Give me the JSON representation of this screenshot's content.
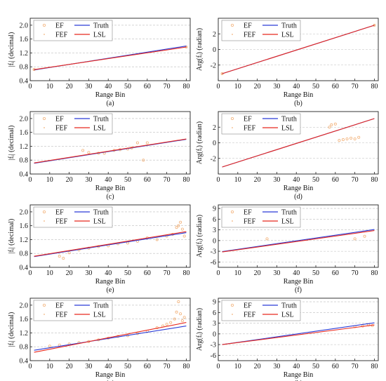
{
  "chart_data": [
    {
      "type": "scatter",
      "panel": "(a)",
      "xlabel": "Range Bin",
      "ylabel": "|fᵢ| (decimal)",
      "xlim": [
        0,
        82
      ],
      "ylim": [
        0.4,
        2.2
      ],
      "xticks": [
        0,
        10,
        20,
        30,
        40,
        50,
        60,
        70,
        80
      ],
      "yticks": [
        0.4,
        0.8,
        1.2,
        1.6,
        2.0
      ],
      "ytick_labels": [
        "0.4",
        "0.8",
        "1.2",
        "1.6",
        "2.0"
      ],
      "grid": "y-dashed",
      "legend": "top-left",
      "series": [
        {
          "name": "EF",
          "marker": "circle",
          "color": "#f2b27a",
          "x": [
            2,
            80
          ],
          "y": [
            0.72,
            1.37
          ]
        },
        {
          "name": "FEF",
          "marker": "dot",
          "color": "#f2b27a",
          "x": [
            2,
            80
          ],
          "y": [
            0.72,
            1.37
          ]
        },
        {
          "name": "Truth",
          "kind": "line",
          "color": "#2a3bd6",
          "x": [
            2,
            80
          ],
          "y": [
            0.71,
            1.4
          ]
        },
        {
          "name": "LSL",
          "kind": "line",
          "color": "#e8281e",
          "x": [
            2,
            80
          ],
          "y": [
            0.72,
            1.37
          ]
        }
      ]
    },
    {
      "type": "scatter",
      "panel": "(b)",
      "xlabel": "Range Bin",
      "ylabel": "Arg(fᵢ) (radian)",
      "xlim": [
        0,
        82
      ],
      "ylim": [
        -4,
        4
      ],
      "xticks": [
        0,
        10,
        20,
        30,
        40,
        50,
        60,
        70,
        80
      ],
      "yticks": [
        -2,
        0,
        2
      ],
      "ytick_labels": [
        "-2",
        "0",
        "2"
      ],
      "grid": "y-dashed",
      "legend": "top-left",
      "series": [
        {
          "name": "EF",
          "marker": "circle",
          "color": "#f2b27a",
          "x": [
            2,
            80
          ],
          "y": [
            -3.1,
            3.1
          ]
        },
        {
          "name": "FEF",
          "marker": "dot",
          "color": "#f2b27a",
          "x": [
            2,
            80
          ],
          "y": [
            -3.1,
            3.1
          ]
        },
        {
          "name": "Truth",
          "kind": "line",
          "color": "#2a3bd6",
          "x": [
            2,
            80
          ],
          "y": [
            -3.1,
            3.1
          ]
        },
        {
          "name": "LSL",
          "kind": "line",
          "color": "#e8281e",
          "x": [
            2,
            80
          ],
          "y": [
            -3.1,
            3.1
          ]
        }
      ]
    },
    {
      "type": "scatter",
      "panel": "(c)",
      "xlabel": "Range Bin",
      "ylabel": "|fᵢ| (decimal)",
      "xlim": [
        0,
        82
      ],
      "ylim": [
        0.4,
        2.2
      ],
      "xticks": [
        0,
        10,
        20,
        30,
        40,
        50,
        60,
        70,
        80
      ],
      "yticks": [
        0.4,
        0.8,
        1.2,
        1.6,
        2.0
      ],
      "ytick_labels": [
        "0.4",
        "0.8",
        "1.2",
        "1.6",
        "2.0"
      ],
      "grid": "y-dashed",
      "legend": "top-left",
      "series": [
        {
          "name": "EF",
          "marker": "circle",
          "color": "#f2b27a",
          "x": [
            27,
            30,
            35,
            38,
            43,
            46,
            50,
            52,
            55,
            58,
            60
          ],
          "y": [
            1.08,
            1.02,
            1.0,
            1.0,
            1.08,
            1.1,
            1.12,
            1.15,
            1.3,
            0.8,
            1.3
          ]
        },
        {
          "name": "FEF",
          "marker": "dot",
          "color": "#f2b27a",
          "x": [],
          "y": []
        },
        {
          "name": "Truth",
          "kind": "line",
          "color": "#2a3bd6",
          "x": [
            2,
            80
          ],
          "y": [
            0.71,
            1.4
          ]
        },
        {
          "name": "LSL",
          "kind": "line",
          "color": "#e8281e",
          "x": [
            2,
            80
          ],
          "y": [
            0.72,
            1.41
          ]
        }
      ]
    },
    {
      "type": "scatter",
      "panel": "(d)",
      "xlabel": "Range Bin",
      "ylabel": "Arg(fᵢ) (radian)",
      "xlim": [
        0,
        82
      ],
      "ylim": [
        -4,
        4
      ],
      "xticks": [
        0,
        10,
        20,
        30,
        40,
        50,
        60,
        70,
        80
      ],
      "yticks": [
        -2,
        0,
        2
      ],
      "ytick_labels": [
        "-2",
        "0",
        "2"
      ],
      "grid": "y-dashed",
      "legend": "top-left",
      "series": [
        {
          "name": "EF",
          "marker": "circle",
          "color": "#f2b27a",
          "x": [
            57,
            58,
            60,
            62,
            64,
            66,
            68,
            70,
            72
          ],
          "y": [
            2.0,
            2.3,
            2.4,
            0.3,
            0.4,
            0.5,
            0.6,
            0.5,
            0.7
          ]
        },
        {
          "name": "FEF",
          "marker": "dot",
          "color": "#f2b27a",
          "x": [],
          "y": []
        },
        {
          "name": "Truth",
          "kind": "line",
          "color": "#2a3bd6",
          "x": [
            2,
            80
          ],
          "y": [
            -3.1,
            3.1
          ]
        },
        {
          "name": "LSL",
          "kind": "line",
          "color": "#e8281e",
          "x": [
            2,
            80
          ],
          "y": [
            -3.1,
            3.1
          ]
        }
      ]
    },
    {
      "type": "scatter",
      "panel": "(e)",
      "xlabel": "Range Bin",
      "ylabel": "|fᵢ| (decimal)",
      "xlim": [
        0,
        82
      ],
      "ylim": [
        0.4,
        2.2
      ],
      "xticks": [
        0,
        10,
        20,
        30,
        40,
        50,
        60,
        70,
        80
      ],
      "yticks": [
        0.4,
        0.8,
        1.2,
        1.6,
        2.0
      ],
      "ytick_labels": [
        "0.4",
        "0.8",
        "1.2",
        "1.6",
        "2.0"
      ],
      "grid": "y-dashed",
      "legend": "top-left",
      "series": [
        {
          "name": "EF",
          "marker": "circle",
          "color": "#f2b27a",
          "x": [
            15,
            17,
            20,
            25,
            30,
            35,
            40,
            45,
            50,
            55,
            60,
            65,
            70,
            73,
            75,
            76,
            77,
            78,
            79
          ],
          "y": [
            0.72,
            0.66,
            0.82,
            0.9,
            0.95,
            1.0,
            1.02,
            1.08,
            1.1,
            1.15,
            1.25,
            1.2,
            1.3,
            1.35,
            1.55,
            1.6,
            1.7,
            1.5,
            1.3
          ]
        },
        {
          "name": "FEF",
          "marker": "dot",
          "color": "#f2b27a",
          "x": [],
          "y": []
        },
        {
          "name": "Truth",
          "kind": "line",
          "color": "#2a3bd6",
          "x": [
            2,
            80
          ],
          "y": [
            0.71,
            1.4
          ]
        },
        {
          "name": "LSL",
          "kind": "line",
          "color": "#e8281e",
          "x": [
            2,
            80
          ],
          "y": [
            0.72,
            1.43
          ]
        }
      ]
    },
    {
      "type": "scatter",
      "panel": "(f)",
      "xlabel": "Range Bin",
      "ylabel": "Arg(fᵢ) (radian)",
      "xlim": [
        0,
        82
      ],
      "ylim": [
        -7.5,
        10
      ],
      "xticks": [
        0,
        10,
        20,
        30,
        40,
        50,
        60,
        70,
        80
      ],
      "yticks": [
        -6,
        -3,
        0,
        3,
        6,
        9
      ],
      "ytick_labels": [
        "-6",
        "-3",
        "0",
        "3",
        "6",
        "9"
      ],
      "grid": "y-dashed",
      "legend": "top-left",
      "series": [
        {
          "name": "EF",
          "marker": "circle",
          "color": "#f2b27a",
          "x": [
            25,
            70,
            75
          ],
          "y": [
            0.5,
            0.5,
            1.2
          ]
        },
        {
          "name": "FEF",
          "marker": "dot",
          "color": "#f2b27a",
          "x": [],
          "y": []
        },
        {
          "name": "Truth",
          "kind": "line",
          "color": "#2a3bd6",
          "x": [
            2,
            80
          ],
          "y": [
            -3.1,
            3.1
          ]
        },
        {
          "name": "LSL",
          "kind": "line",
          "color": "#e8281e",
          "x": [
            2,
            80
          ],
          "y": [
            -3.2,
            2.8
          ]
        }
      ]
    },
    {
      "type": "scatter",
      "panel": "(g)",
      "xlabel": "Range Bin",
      "ylabel": "|fᵢ| (decimal)",
      "xlim": [
        0,
        82
      ],
      "ylim": [
        0.4,
        2.2
      ],
      "xticks": [
        0,
        10,
        20,
        30,
        40,
        50,
        60,
        70,
        80
      ],
      "yticks": [
        0.4,
        0.8,
        1.2,
        1.6,
        2.0
      ],
      "ytick_labels": [
        "0.4",
        "0.8",
        "1.2",
        "1.6",
        "2.0"
      ],
      "grid": "y-dashed",
      "legend": "top-left",
      "series": [
        {
          "name": "EF",
          "marker": "circle",
          "color": "#f2b27a",
          "x": [
            10,
            15,
            20,
            25,
            30,
            35,
            40,
            45,
            50,
            55,
            60,
            65,
            68,
            70,
            72,
            74,
            75,
            76,
            77,
            78,
            79
          ],
          "y": [
            0.82,
            0.85,
            0.88,
            0.92,
            0.95,
            1.0,
            1.05,
            1.1,
            1.12,
            1.18,
            1.25,
            1.35,
            1.4,
            1.45,
            1.5,
            1.6,
            1.8,
            2.1,
            1.75,
            1.55,
            1.65
          ]
        },
        {
          "name": "FEF",
          "marker": "dot",
          "color": "#f2b27a",
          "x": [],
          "y": []
        },
        {
          "name": "Truth",
          "kind": "line",
          "color": "#2a3bd6",
          "x": [
            2,
            80
          ],
          "y": [
            0.7,
            1.4
          ]
        },
        {
          "name": "LSL",
          "kind": "line",
          "color": "#e8281e",
          "x": [
            2,
            80
          ],
          "y": [
            0.64,
            1.5
          ]
        }
      ]
    },
    {
      "type": "scatter",
      "panel": "(h)",
      "xlabel": "Range Bin",
      "ylabel": "Arg(fᵢ) (radian)",
      "xlim": [
        0,
        82
      ],
      "ylim": [
        -7.5,
        10
      ],
      "xticks": [
        0,
        10,
        20,
        30,
        40,
        50,
        60,
        70,
        80
      ],
      "yticks": [
        -6,
        -3,
        0,
        3,
        6,
        9
      ],
      "ytick_labels": [
        "-6",
        "-3",
        "0",
        "3",
        "6",
        "9"
      ],
      "grid": "y-dashed",
      "legend": "top-left",
      "series": [
        {
          "name": "EF",
          "marker": "circle",
          "color": "#f2b27a",
          "x": [
            70,
            74,
            77,
            79
          ],
          "y": [
            2.0,
            2.2,
            2.5,
            2.3
          ]
        },
        {
          "name": "FEF",
          "marker": "dot",
          "color": "#f2b27a",
          "x": [],
          "y": []
        },
        {
          "name": "Truth",
          "kind": "line",
          "color": "#2a3bd6",
          "x": [
            2,
            80
          ],
          "y": [
            -3.0,
            3.1
          ]
        },
        {
          "name": "LSL",
          "kind": "line",
          "color": "#e8281e",
          "x": [
            2,
            80
          ],
          "y": [
            -3.0,
            2.5
          ]
        }
      ]
    }
  ]
}
